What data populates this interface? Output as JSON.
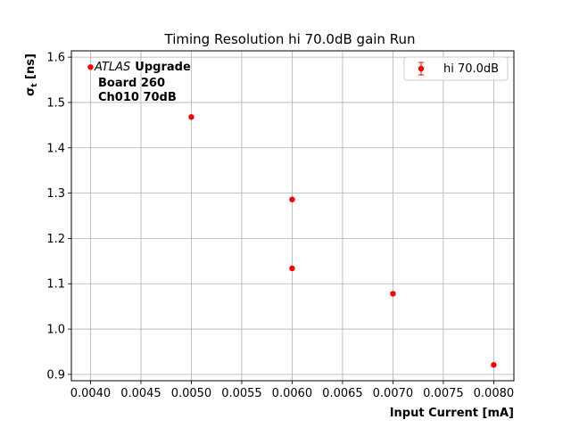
{
  "chart_data": {
    "type": "scatter",
    "title": "Timing Resolution hi 70.0dB gain Run",
    "xlabel": "Input Current [mA]",
    "ylabel": "σ",
    "ylabel_sub": "t",
    "ylabel_unit": " [ns]",
    "xlim": [
      0.00381,
      0.0082
    ],
    "ylim": [
      0.886,
      1.614
    ],
    "xticks": [
      0.004,
      0.0045,
      0.005,
      0.0055,
      0.006,
      0.0065,
      0.007,
      0.0075,
      0.008
    ],
    "xtick_labels": [
      "0.0040",
      "0.0045",
      "0.0050",
      "0.0055",
      "0.0060",
      "0.0065",
      "0.0070",
      "0.0075",
      "0.0080"
    ],
    "yticks": [
      0.9,
      1.0,
      1.1,
      1.2,
      1.3,
      1.4,
      1.5,
      1.6
    ],
    "ytick_labels": [
      "0.9",
      "1.0",
      "1.1",
      "1.2",
      "1.3",
      "1.4",
      "1.5",
      "1.6"
    ],
    "grid": true,
    "legend_position": "top-right",
    "series": [
      {
        "name": "hi 70.0dB",
        "color": "#ff0000",
        "points": [
          {
            "x": 0.004,
            "y": 1.578
          },
          {
            "x": 0.005,
            "y": 1.468
          },
          {
            "x": 0.006,
            "y": 1.286
          },
          {
            "x": 0.006,
            "y": 1.134
          },
          {
            "x": 0.007,
            "y": 1.078
          },
          {
            "x": 0.008,
            "y": 0.921
          }
        ]
      }
    ],
    "annotations": {
      "atlas": "ATLAS",
      "upgrade": "Upgrade",
      "board": "Board 260",
      "channel": "Ch010 70dB"
    }
  }
}
